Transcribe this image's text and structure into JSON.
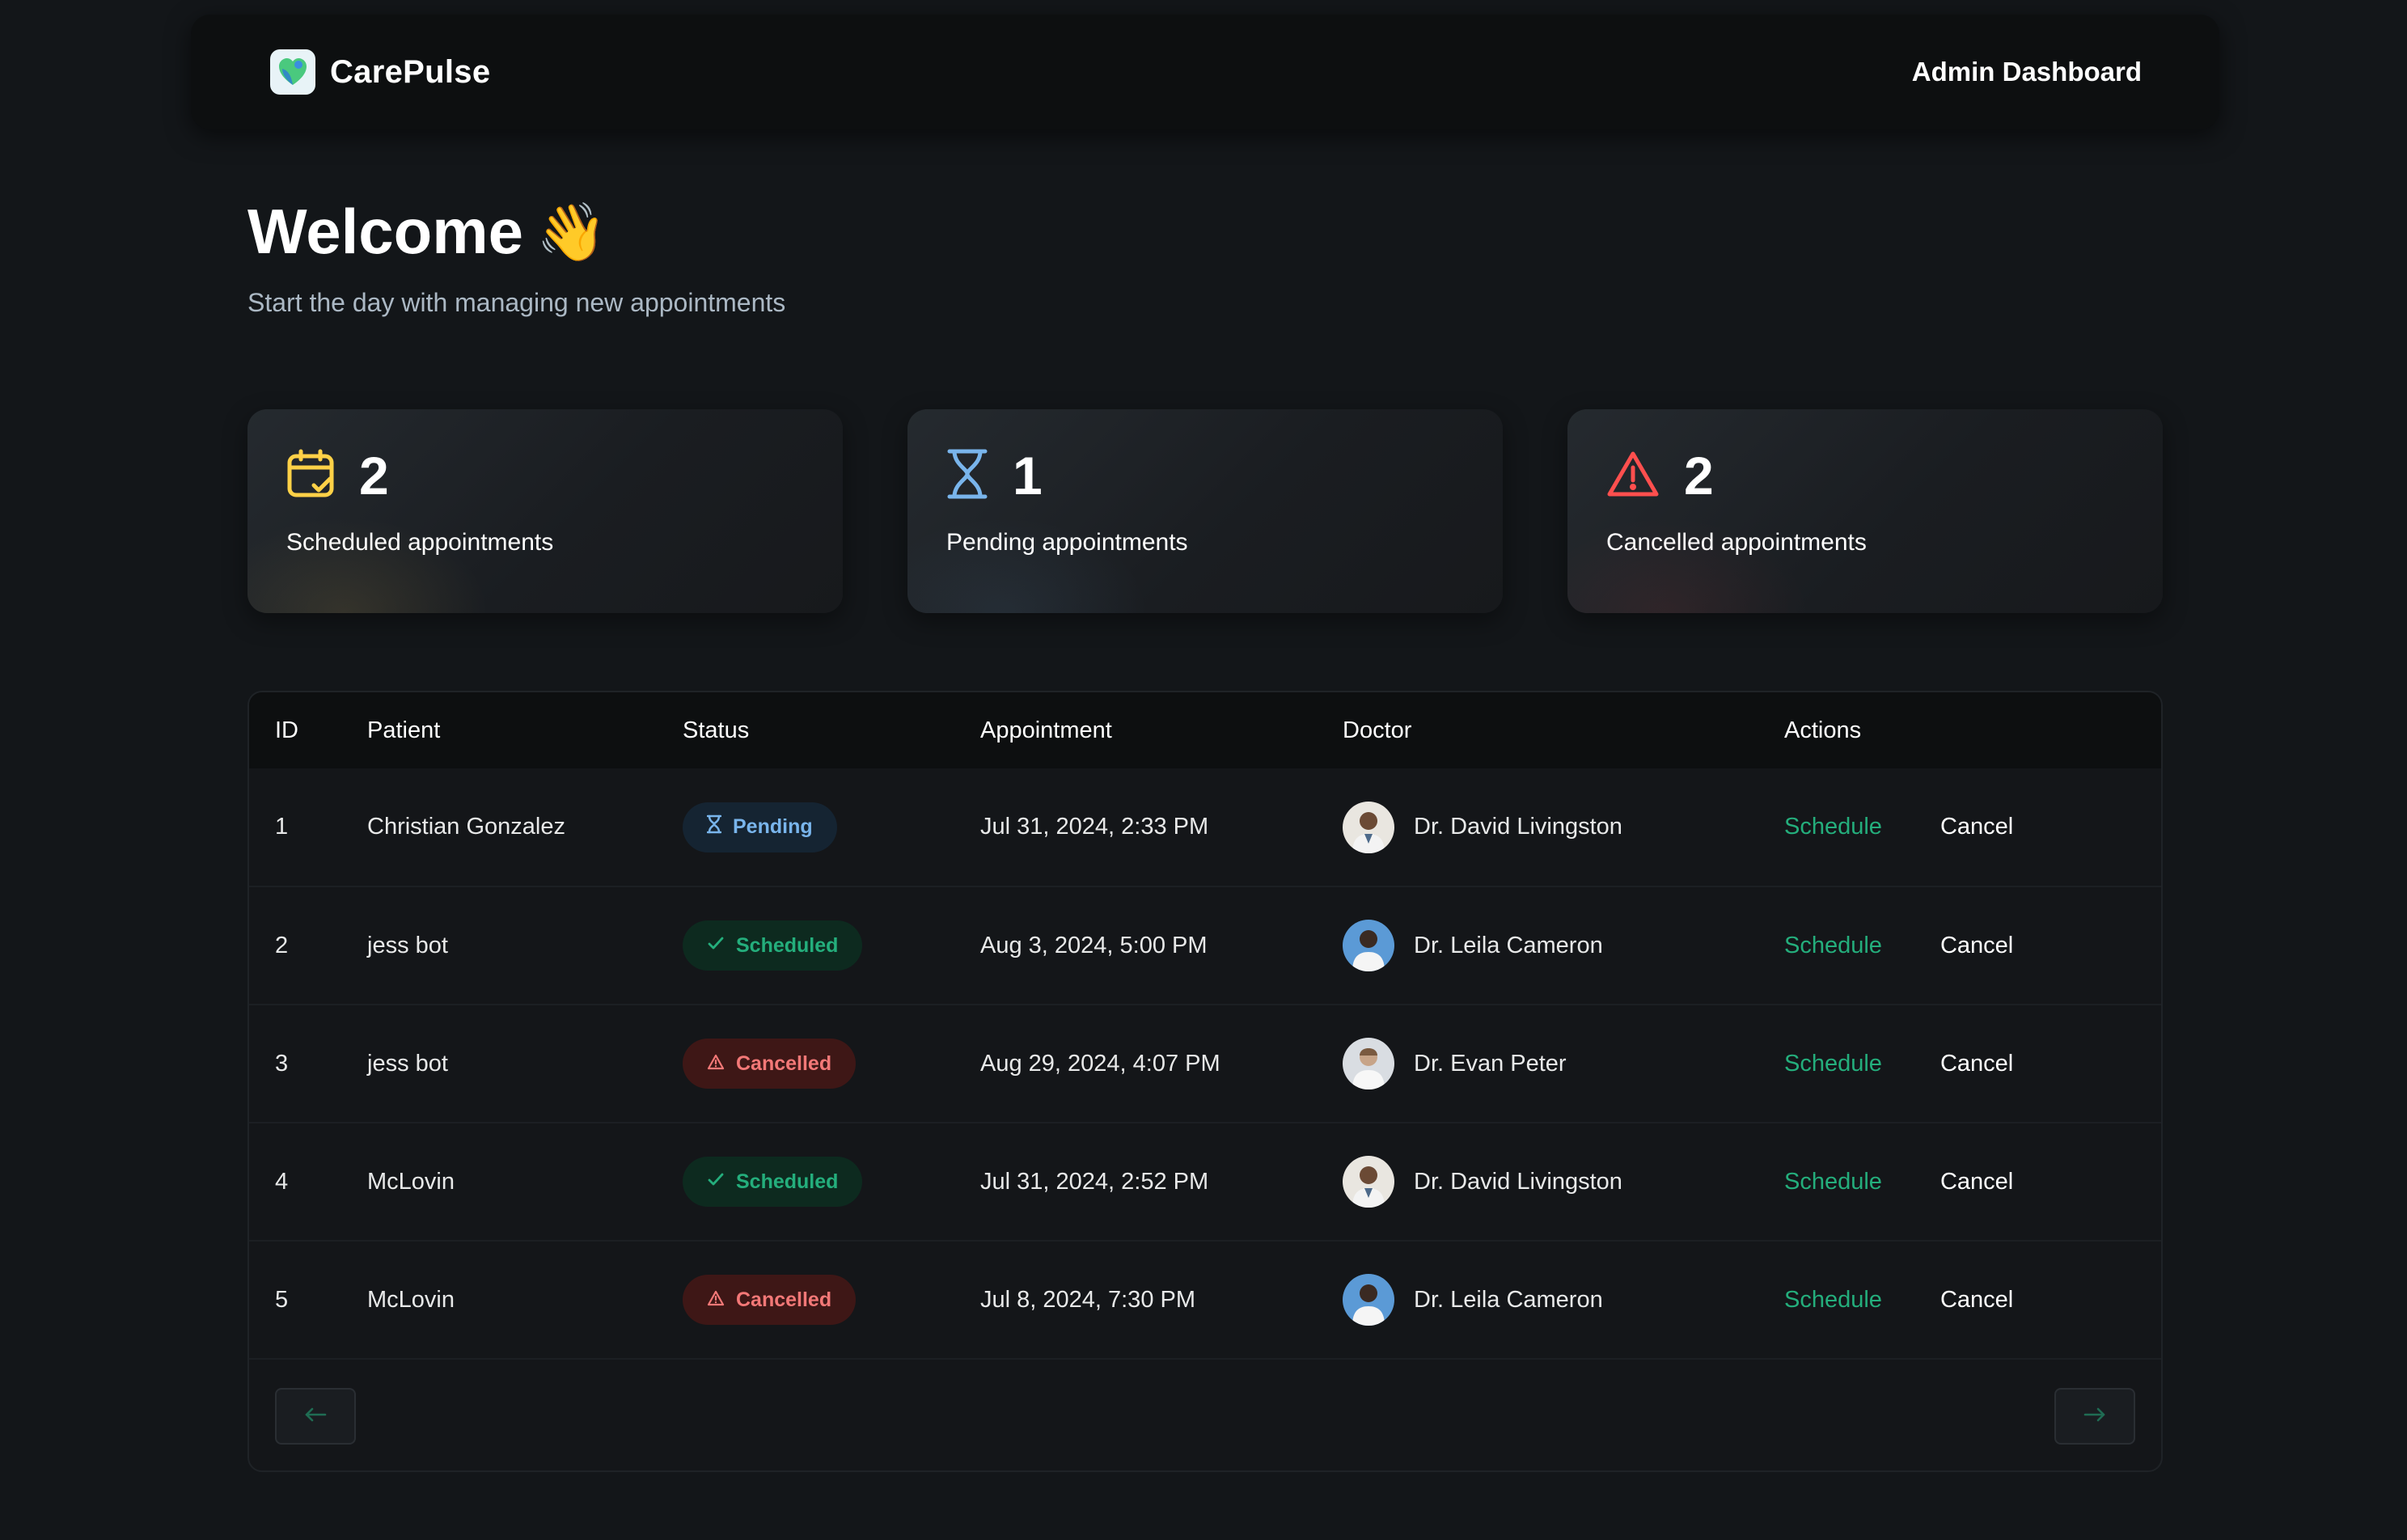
{
  "header": {
    "brand_name": "CarePulse",
    "title": "Admin Dashboard"
  },
  "welcome": {
    "title": "Welcome",
    "emoji": "👋",
    "subtitle": "Start the day with managing new appointments"
  },
  "stats": [
    {
      "count": "2",
      "label": "Scheduled appointments",
      "icon": "calendar-check-icon",
      "color": "#ffd147"
    },
    {
      "count": "1",
      "label": "Pending appointments",
      "icon": "hourglass-icon",
      "color": "#79b5ec"
    },
    {
      "count": "2",
      "label": "Cancelled appointments",
      "icon": "alert-triangle-icon",
      "color": "#ff4f4e"
    }
  ],
  "table": {
    "columns": [
      "ID",
      "Patient",
      "Status",
      "Appointment",
      "Doctor",
      "Actions"
    ],
    "rows": [
      {
        "id": "1",
        "patient": "Christian Gonzalez",
        "status": "Pending",
        "appointment": "Jul 31, 2024, 2:33 PM",
        "doctor": "Dr. David Livingston",
        "schedule": "Schedule",
        "cancel": "Cancel"
      },
      {
        "id": "2",
        "patient": "jess bot",
        "status": "Scheduled",
        "appointment": "Aug 3, 2024, 5:00 PM",
        "doctor": "Dr. Leila Cameron",
        "schedule": "Schedule",
        "cancel": "Cancel"
      },
      {
        "id": "3",
        "patient": "jess bot",
        "status": "Cancelled",
        "appointment": "Aug 29, 2024, 4:07 PM",
        "doctor": "Dr. Evan Peter",
        "schedule": "Schedule",
        "cancel": "Cancel"
      },
      {
        "id": "4",
        "patient": "McLovin",
        "status": "Scheduled",
        "appointment": "Jul 31, 2024, 2:52 PM",
        "doctor": "Dr. David Livingston",
        "schedule": "Schedule",
        "cancel": "Cancel"
      },
      {
        "id": "5",
        "patient": "McLovin",
        "status": "Cancelled",
        "appointment": "Jul 8, 2024, 7:30 PM",
        "doctor": "Dr. Leila Cameron",
        "schedule": "Schedule",
        "cancel": "Cancel"
      }
    ]
  },
  "colors": {
    "background": "#131619",
    "accent_green": "#24ae7c",
    "pending_blue": "#79b5ec",
    "cancel_red": "#f37877"
  }
}
